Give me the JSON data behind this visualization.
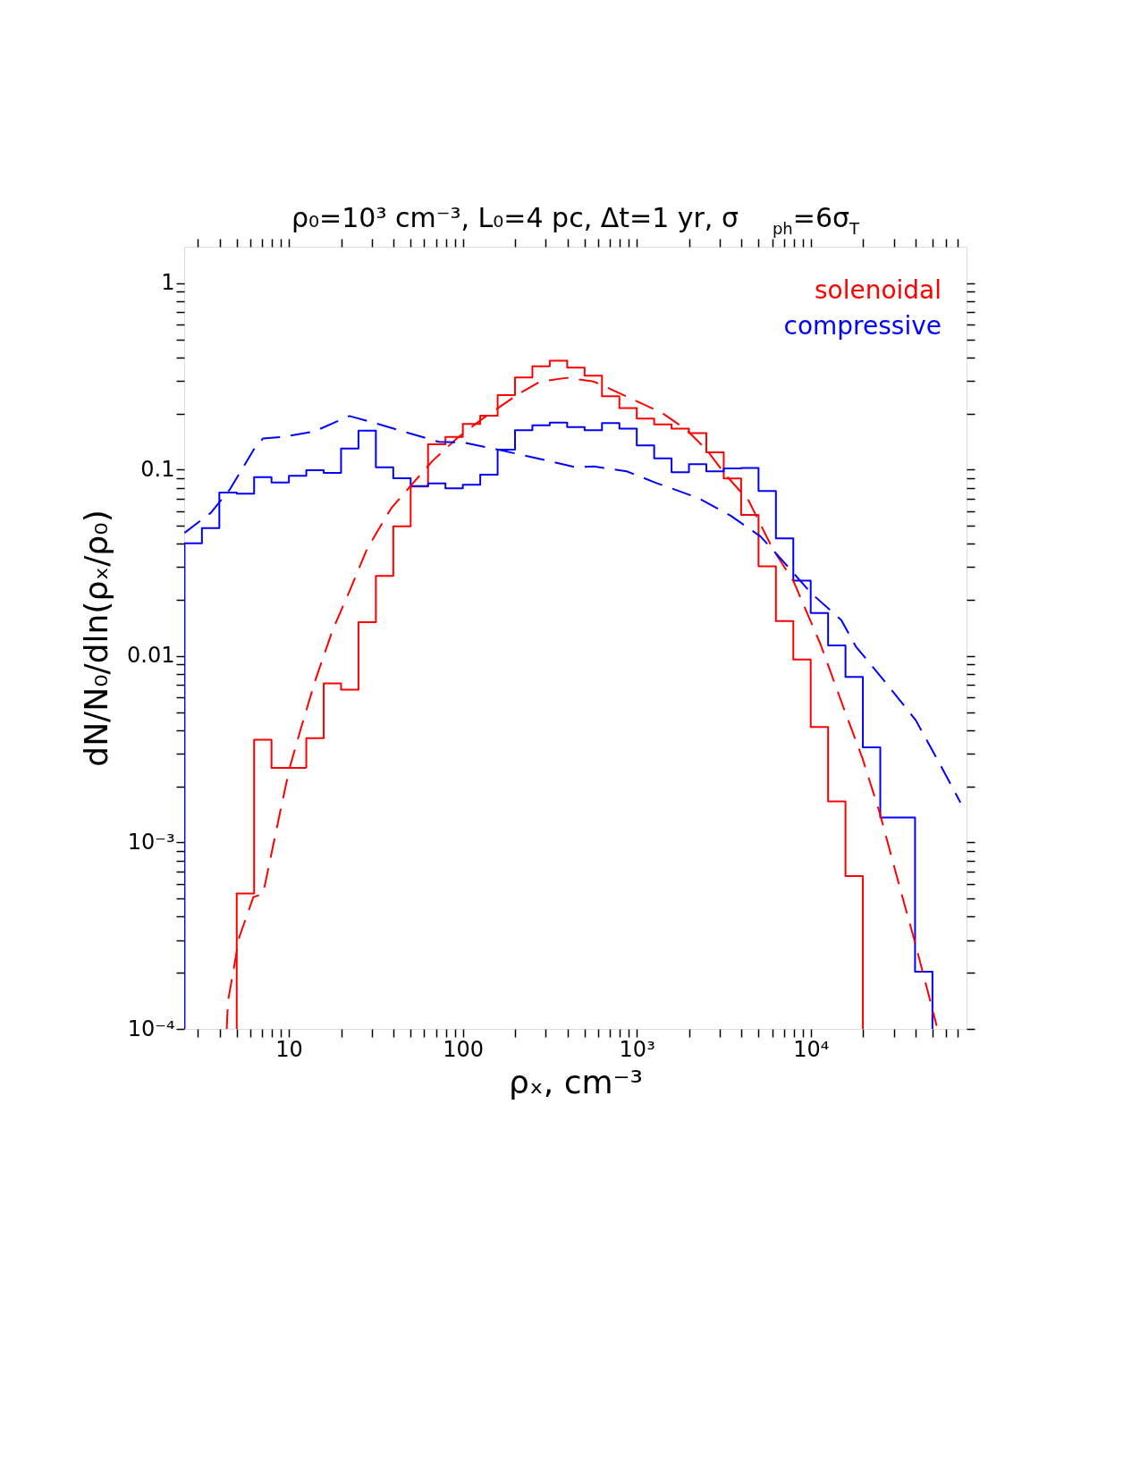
{
  "chart_data": {
    "type": "histogram",
    "title": "ρ₀=10³ cm⁻³,  L₀=4  pc,  Δt=1 yr,  σ$_{ph}$=6σ$_{T}$",
    "xlabel": "ρₓ, cm⁻³",
    "ylabel": "dN/N₀/dln(ρₓ/ρ₀)",
    "log": "xy",
    "xlim": [
      2.5,
      78700
    ],
    "ylim": [
      0.0001,
      1.57
    ],
    "xticks": [
      {
        "value": 3,
        "label": null
      },
      {
        "value": 4,
        "label": null
      },
      {
        "value": 5,
        "label": null
      },
      {
        "value": 6,
        "label": null
      },
      {
        "value": 7,
        "label": null
      },
      {
        "value": 8,
        "label": null
      },
      {
        "value": 9,
        "label": null
      },
      10,
      {
        "value": 20,
        "label": null
      },
      {
        "value": 30,
        "label": null
      },
      {
        "value": 40,
        "label": null
      },
      {
        "value": 50,
        "label": null
      },
      {
        "value": 60,
        "label": null
      },
      {
        "value": 70,
        "label": null
      },
      {
        "value": 80,
        "label": null
      },
      {
        "value": 90,
        "label": null
      },
      100,
      {
        "value": 200,
        "label": null
      },
      {
        "value": 300,
        "label": null
      },
      {
        "value": 400,
        "label": null
      },
      {
        "value": 500,
        "label": null
      },
      {
        "value": 600,
        "label": null
      },
      {
        "value": 700,
        "label": null
      },
      {
        "value": 800,
        "label": null
      },
      {
        "value": 900,
        "label": null
      },
      {
        "value": 1000,
        "label": "10³"
      },
      {
        "value": 2000,
        "label": null
      },
      {
        "value": 3000,
        "label": null
      },
      {
        "value": 4000,
        "label": null
      },
      {
        "value": 5000,
        "label": null
      },
      {
        "value": 6000,
        "label": null
      },
      {
        "value": 7000,
        "label": null
      },
      {
        "value": 8000,
        "label": null
      },
      {
        "value": 9000,
        "label": null
      },
      {
        "value": 10000,
        "label": "10⁴"
      },
      {
        "value": 20000,
        "label": null
      },
      {
        "value": 30000,
        "label": null
      },
      {
        "value": 40000,
        "label": null
      },
      {
        "value": 50000,
        "label": null
      },
      {
        "value": 60000,
        "label": null
      },
      {
        "value": 70000,
        "label": null
      }
    ],
    "yticks": [
      {
        "value": 0.0001,
        "label": "10⁻⁴"
      },
      {
        "value": 0.0002,
        "label": null
      },
      {
        "value": 0.0003,
        "label": null
      },
      {
        "value": 0.0004,
        "label": null
      },
      {
        "value": 0.0005,
        "label": null
      },
      {
        "value": 0.0006,
        "label": null
      },
      {
        "value": 0.0007,
        "label": null
      },
      {
        "value": 0.0008,
        "label": null
      },
      {
        "value": 0.0009,
        "label": null
      },
      {
        "value": 0.001,
        "label": "10⁻³"
      },
      {
        "value": 0.002,
        "label": null
      },
      {
        "value": 0.003,
        "label": null
      },
      {
        "value": 0.004,
        "label": null
      },
      {
        "value": 0.005,
        "label": null
      },
      {
        "value": 0.006,
        "label": null
      },
      {
        "value": 0.007,
        "label": null
      },
      {
        "value": 0.008,
        "label": null
      },
      {
        "value": 0.009,
        "label": null
      },
      0.01,
      {
        "value": 0.02,
        "label": null
      },
      {
        "value": 0.03,
        "label": null
      },
      {
        "value": 0.04,
        "label": null
      },
      {
        "value": 0.05,
        "label": null
      },
      {
        "value": 0.06,
        "label": null
      },
      {
        "value": 0.07,
        "label": null
      },
      {
        "value": 0.08,
        "label": null
      },
      {
        "value": 0.09,
        "label": null
      },
      0.1,
      {
        "value": 0.2,
        "label": null
      },
      {
        "value": 0.3,
        "label": null
      },
      {
        "value": 0.4,
        "label": null
      },
      {
        "value": 0.5,
        "label": null
      },
      {
        "value": 0.6,
        "label": null
      },
      {
        "value": 0.7,
        "label": null
      },
      {
        "value": 0.8,
        "label": null
      },
      {
        "value": 0.9,
        "label": null
      },
      1
    ],
    "legend": "top right",
    "series": [
      {
        "name": "solenoidal",
        "color": "#ff0000",
        "bins": [
          5.012,
          6.31,
          7.943,
          10,
          12.59,
          15.85,
          19.95,
          25.12,
          31.62,
          39.81,
          50.12,
          63.1,
          79.43,
          100,
          125.9,
          158.5,
          199.5,
          251.2,
          316.2,
          398.1,
          501.2,
          631,
          794.3,
          1000,
          1259,
          1585,
          1995,
          2512,
          3162,
          3981,
          5012,
          6310,
          7943,
          10000,
          12589,
          15849,
          19953
        ],
        "values": [
          0.000532,
          0.00356,
          0.00251,
          0.00251,
          0.00363,
          0.00713,
          0.0066,
          0.0152,
          0.0269,
          0.0497,
          0.0811,
          0.137,
          0.15,
          0.176,
          0.195,
          0.251,
          0.312,
          0.359,
          0.384,
          0.353,
          0.319,
          0.248,
          0.214,
          0.188,
          0.175,
          0.166,
          0.157,
          0.124,
          0.0896,
          0.0572,
          0.0303,
          0.0154,
          0.00958,
          0.00417,
          0.00166,
          0.000661
        ]
      },
      {
        "name": "compressive",
        "color": "#0000ff",
        "bins": [
          2.512,
          3.162,
          3.981,
          5.012,
          6.31,
          7.943,
          10,
          12.59,
          15.85,
          19.95,
          25.12,
          31.62,
          39.81,
          50.12,
          63.1,
          79.43,
          100,
          125.9,
          158.5,
          199.5,
          251.2,
          316.2,
          398.1,
          501.2,
          631,
          794.3,
          1000,
          1259,
          1585,
          1995,
          2512,
          3162,
          3981,
          5012,
          6310,
          7943,
          10000,
          12589,
          15849,
          19953,
          25119,
          31623,
          39811,
          50119
        ],
        "values": [
          0.0403,
          0.0486,
          0.0754,
          0.0743,
          0.0913,
          0.0854,
          0.0926,
          0.0994,
          0.0961,
          0.13,
          0.162,
          0.103,
          0.09,
          0.0817,
          0.0845,
          0.0794,
          0.083,
          0.094,
          0.128,
          0.163,
          0.173,
          0.179,
          0.169,
          0.163,
          0.178,
          0.166,
          0.135,
          0.115,
          0.097,
          0.107,
          0.098,
          0.1016,
          0.102,
          0.0768,
          0.0428,
          0.0254,
          0.017,
          0.0114,
          0.00774,
          0.00324,
          0.00136,
          0.00136,
          0.000203
        ]
      },
      {
        "type": "line",
        "line_style": "dashed",
        "color": "#ff0000",
        "x": [
          4.39,
          4.46,
          5.18,
          6.25,
          7.1,
          7.83,
          9.0,
          10.1,
          11.9,
          14.2,
          17.9,
          22.3,
          28.2,
          38.7,
          50.0,
          67.3,
          92.3,
          126,
          211,
          279,
          397,
          566,
          875,
          1403,
          1928,
          2535,
          3214,
          4406,
          6039,
          7962,
          11376,
          15600,
          19770,
          25000,
          33000,
          40200,
          53000
        ],
        "values": [
          0.0001,
          0.00014,
          0.00031,
          0.00051,
          0.00053,
          0.00082,
          0.00153,
          0.00252,
          0.00429,
          0.00745,
          0.0139,
          0.0223,
          0.0377,
          0.062,
          0.0817,
          0.112,
          0.147,
          0.184,
          0.256,
          0.297,
          0.311,
          0.297,
          0.247,
          0.201,
          0.164,
          0.127,
          0.0947,
          0.068,
          0.0377,
          0.0252,
          0.0116,
          0.00516,
          0.00286,
          0.00143,
          0.000546,
          0.000281,
          0.000104
        ]
      },
      {
        "type": "line",
        "line_style": "dashed",
        "color": "#0000ff",
        "x": [
          2.51,
          3.56,
          4.59,
          6.31,
          7.1,
          9.35,
          13.9,
          22.3,
          31.8,
          49.0,
          72.8,
          99.8,
          160,
          279,
          447,
          566,
          875,
          1297,
          2254,
          3483,
          5164,
          7362,
          10090,
          15000,
          18240,
          27040,
          40180,
          55080,
          72600
        ],
        "values": [
          0.0458,
          0.0587,
          0.0787,
          0.129,
          0.147,
          0.15,
          0.16,
          0.194,
          0.177,
          0.157,
          0.141,
          0.14,
          0.128,
          0.114,
          0.103,
          0.104,
          0.098,
          0.0848,
          0.0705,
          0.0565,
          0.0437,
          0.0303,
          0.0217,
          0.0156,
          0.0112,
          0.00719,
          0.00453,
          0.00265,
          0.00164
        ]
      }
    ]
  }
}
